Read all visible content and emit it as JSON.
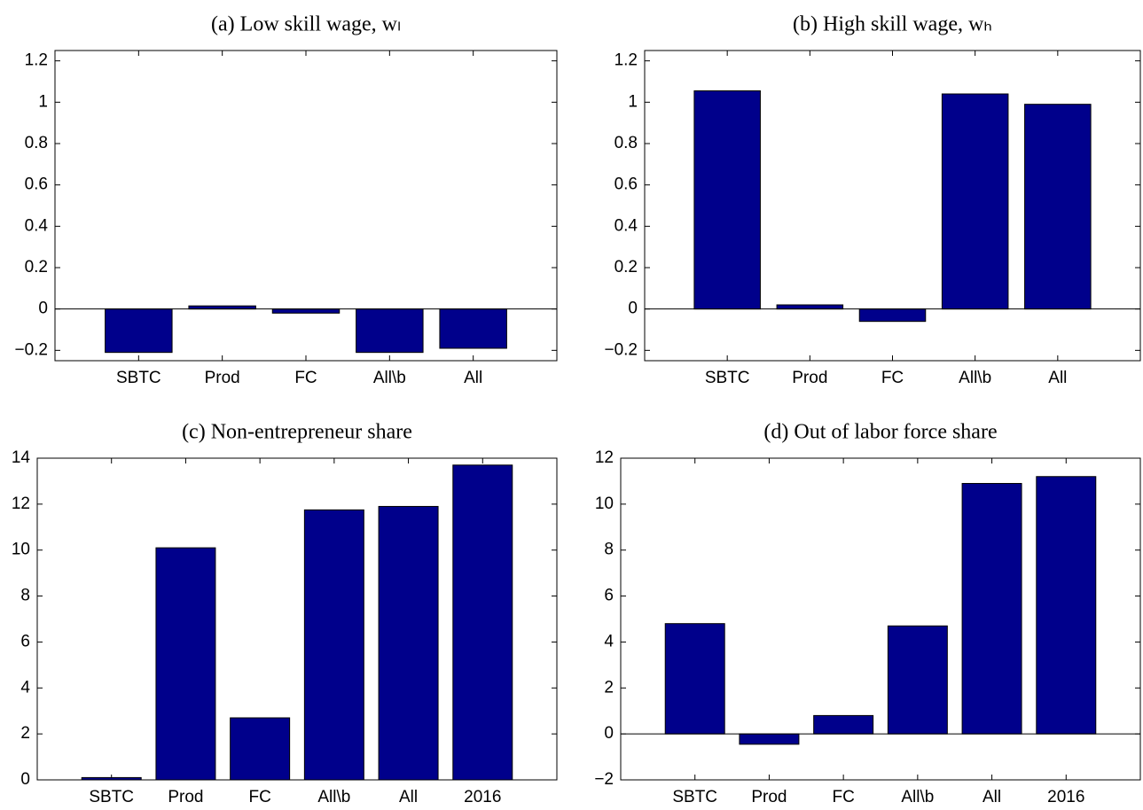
{
  "chart_data": [
    {
      "type": "bar",
      "title": "(a) Low skill wage, wₗ",
      "categories": [
        "SBTC",
        "Prod",
        "FC",
        "All\\b",
        "All"
      ],
      "values": [
        -0.21,
        0.015,
        -0.02,
        -0.21,
        -0.19
      ],
      "color": "#00008b",
      "ylim": [
        -0.25,
        1.25
      ],
      "yticks": [
        {
          "value": -0.2,
          "label": "−0.2"
        },
        0,
        0.2,
        0.4,
        0.6,
        0.8,
        1,
        1.2
      ]
    },
    {
      "type": "bar",
      "title": "(b) High skill wage, wₕ",
      "categories": [
        "SBTC",
        "Prod",
        "FC",
        "All\\b",
        "All"
      ],
      "values": [
        1.055,
        0.02,
        -0.06,
        1.04,
        0.99
      ],
      "color": "#00008b",
      "ylim": [
        -0.25,
        1.25
      ],
      "yticks": [
        {
          "value": -0.2,
          "label": "−0.2"
        },
        0,
        0.2,
        0.4,
        0.6,
        0.8,
        1,
        1.2
      ]
    },
    {
      "type": "bar",
      "title": "(c) Non-entrepreneur share",
      "categories": [
        "SBTC",
        "Prod",
        "FC",
        "All\\b",
        "All",
        "2016"
      ],
      "values": [
        0.1,
        10.1,
        2.7,
        11.75,
        11.9,
        13.7
      ],
      "color": "#00008b",
      "ylim": [
        0,
        14
      ],
      "yticks": [
        0,
        2,
        4,
        6,
        8,
        10,
        12,
        14
      ]
    },
    {
      "type": "bar",
      "title": "(d) Out of labor force share",
      "categories": [
        "SBTC",
        "Prod",
        "FC",
        "All\\b",
        "All",
        "2016"
      ],
      "values": [
        4.8,
        -0.45,
        0.8,
        4.7,
        10.9,
        11.2
      ],
      "color": "#00008b",
      "ylim": [
        -2,
        12
      ],
      "yticks": [
        {
          "value": -2,
          "label": "−2"
        },
        0,
        2,
        4,
        6,
        8,
        10,
        12
      ]
    }
  ]
}
